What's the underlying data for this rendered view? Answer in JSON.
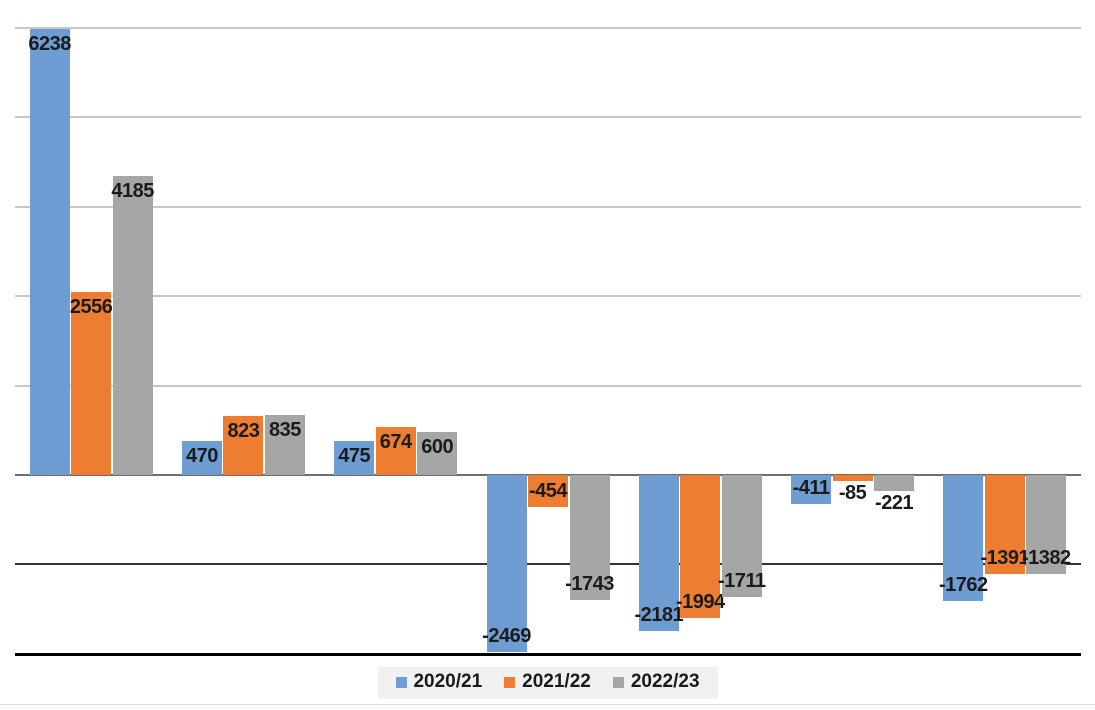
{
  "chart_data": {
    "type": "bar",
    "title": "",
    "xlabel": "",
    "ylabel": "",
    "categories": [
      "",
      "",
      "",
      "",
      "",
      "",
      ""
    ],
    "series": [
      {
        "name": "2020/21",
        "color": "#6d9dd3",
        "values": [
          6238,
          470,
          475,
          -2469,
          -2181,
          -411,
          -1762
        ]
      },
      {
        "name": "2021/22",
        "color": "#ed7d31",
        "values": [
          2556,
          823,
          674,
          -454,
          -1994,
          -85,
          -1391
        ]
      },
      {
        "name": "2022/23",
        "color": "#a6a6a6",
        "values": [
          4185,
          835,
          600,
          -1743,
          -1711,
          -221,
          -1382
        ]
      }
    ],
    "ylim": [
      -2500,
      6250
    ],
    "y_gridlines": [
      6250,
      5000,
      3750,
      2500,
      1250,
      0,
      -1250,
      -2500
    ],
    "grid": "horizontal-only",
    "y_axis_labels_visible": false,
    "x_axis_labels_visible": false,
    "data_labels": "inside-end",
    "legend_position": "bottom-center"
  },
  "legend": {
    "entries": [
      {
        "label": "2020/21"
      },
      {
        "label": "2021/22"
      },
      {
        "label": "2022/23"
      }
    ]
  }
}
